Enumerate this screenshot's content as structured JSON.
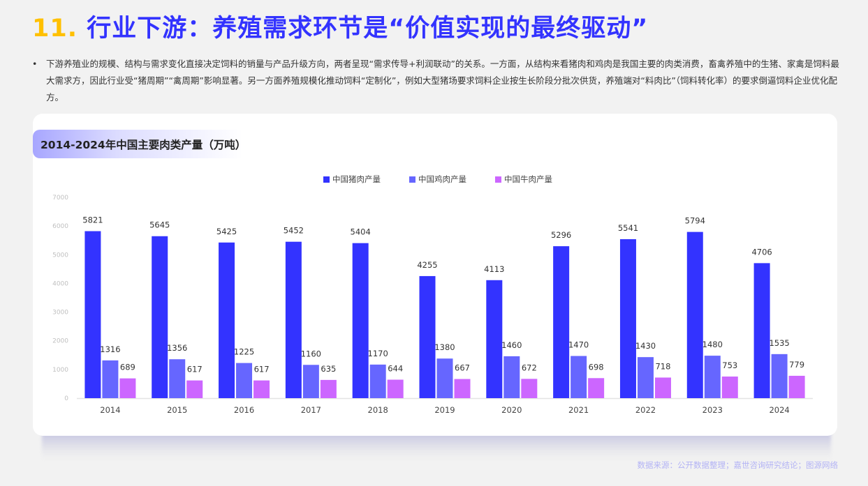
{
  "header": {
    "number": "11.",
    "title": "行业下游：养殖需求环节是“价值实现的最终驱动”"
  },
  "body": {
    "bullet": "•",
    "paragraph": "下游养殖业的规模、结构与需求变化直接决定饲料的销量与产品升级方向，两者呈现“需求传导+利润联动”的关系。一方面，从结构来看猪肉和鸡肉是我国主要的肉类消费，畜禽养殖中的生猪、家禽是饲料最大需求方，因此行业受“猪周期”“禽周期”影响显著。另一方面养殖规模化推动饲料“定制化”，例如大型猪场要求饲料企业按生长阶段分批次供货，养殖端对“料肉比”（饲料转化率）的要求倒逼饲料企业优化配方。"
  },
  "card": {
    "title": "2014-2024年中国主要肉类产量（万吨）"
  },
  "footer": {
    "source": "数据来源：公开数据整理；嘉世咨询研究结论；图源网络"
  },
  "colors": {
    "title_number": "#ffc000",
    "title_text": "#3333ff",
    "pork": "#3333ff",
    "chicken": "#6666ff",
    "beef": "#cc66ff",
    "source_text": "#b3b3f5"
  },
  "chart_data": {
    "type": "bar",
    "title": "2014-2024年中国主要肉类产量（万吨）",
    "xlabel": "",
    "ylabel": "",
    "ylim": [
      0,
      7000
    ],
    "yticks": [
      0,
      1000,
      2000,
      3000,
      4000,
      5000,
      6000,
      7000
    ],
    "grid": false,
    "legend_position": "top",
    "categories": [
      "2014",
      "2015",
      "2016",
      "2017",
      "2018",
      "2019",
      "2020",
      "2021",
      "2022",
      "2023",
      "2024"
    ],
    "series": [
      {
        "name": "中国猪肉产量",
        "color": "#3333ff",
        "values": [
          5821,
          5645,
          5425,
          5452,
          5404,
          4255,
          4113,
          5296,
          5541,
          5794,
          4706
        ]
      },
      {
        "name": "中国鸡肉产量",
        "color": "#6666ff",
        "values": [
          1316,
          1356,
          1225,
          1160,
          1170,
          1380,
          1460,
          1470,
          1430,
          1480,
          1535
        ]
      },
      {
        "name": "中国牛肉产量",
        "color": "#cc66ff",
        "values": [
          689,
          617,
          617,
          635,
          644,
          667,
          672,
          698,
          718,
          753,
          779
        ]
      }
    ]
  }
}
